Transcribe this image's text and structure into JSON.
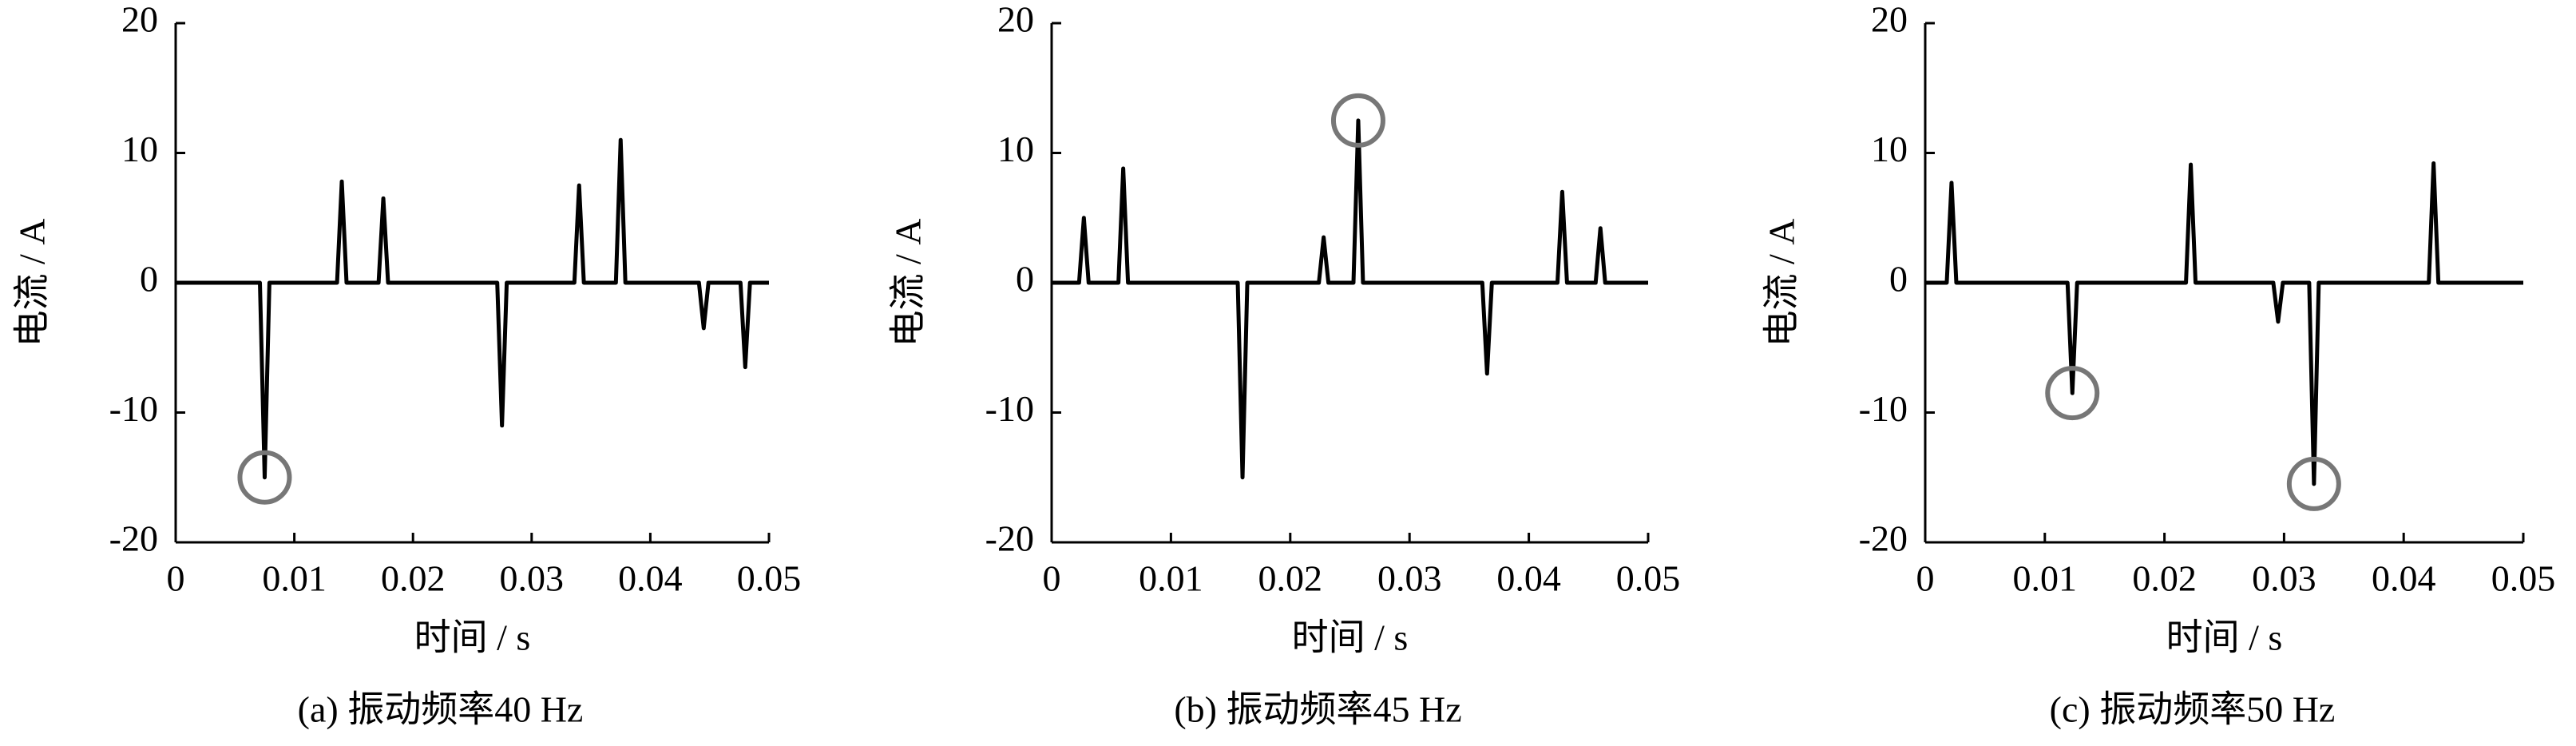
{
  "chart_data": [
    {
      "type": "line",
      "caption": "(a)  振动频率40 Hz",
      "xlabel": "时间 / s",
      "ylabel": "电流 / A",
      "xlim": [
        0,
        0.05
      ],
      "ylim": [
        -20,
        20
      ],
      "xticks": [
        0,
        0.01,
        0.02,
        0.03,
        0.04,
        0.05
      ],
      "yticks": [
        -20,
        -10,
        0,
        10,
        20
      ],
      "series": [
        {
          "color": "#000000",
          "x": [
            0,
            0.0071,
            0.0075,
            0.0079,
            0.0136,
            0.014,
            0.0144,
            0.0171,
            0.0175,
            0.0179,
            0.0271,
            0.0275,
            0.0279,
            0.0336,
            0.034,
            0.0344,
            0.0371,
            0.0375,
            0.0379,
            0.0441,
            0.0445,
            0.0449,
            0.0476,
            0.048,
            0.0484,
            0.05
          ],
          "values": [
            0,
            0,
            -15,
            0,
            0,
            7.8,
            0,
            0,
            6.5,
            0,
            0,
            -11,
            0,
            0,
            7.5,
            0,
            0,
            11,
            0,
            0,
            -3.5,
            0,
            0,
            -6.5,
            0,
            0
          ]
        }
      ],
      "markers": [
        {
          "x": 0.0075,
          "y": -15
        }
      ],
      "marker_color": "#777777"
    },
    {
      "type": "line",
      "caption": "(b)  振动频率45 Hz",
      "xlabel": "时间 / s",
      "ylabel": "电流 / A",
      "xlim": [
        0,
        0.05
      ],
      "ylim": [
        -20,
        20
      ],
      "xticks": [
        0,
        0.01,
        0.02,
        0.03,
        0.04,
        0.05
      ],
      "yticks": [
        -20,
        -10,
        0,
        10,
        20
      ],
      "series": [
        {
          "color": "#000000",
          "x": [
            0,
            0.0023,
            0.0027,
            0.0031,
            0.0056,
            0.006,
            0.0064,
            0.0156,
            0.016,
            0.0164,
            0.0224,
            0.0228,
            0.0232,
            0.0253,
            0.0257,
            0.0261,
            0.0361,
            0.0365,
            0.0369,
            0.0424,
            0.0428,
            0.0432,
            0.0456,
            0.046,
            0.0464,
            0.05
          ],
          "values": [
            0,
            0,
            5,
            0,
            0,
            8.8,
            0,
            0,
            -15,
            0,
            0,
            3.5,
            0,
            0,
            12.5,
            0,
            0,
            -7,
            0,
            0,
            7,
            0,
            0,
            4.2,
            0,
            0
          ]
        }
      ],
      "markers": [
        {
          "x": 0.0257,
          "y": 12.5
        }
      ],
      "marker_color": "#777777"
    },
    {
      "type": "line",
      "caption": "(c)  振动频率50 Hz",
      "xlabel": "时间 / s",
      "ylabel": "电流 / A",
      "xlim": [
        0,
        0.05
      ],
      "ylim": [
        -20,
        20
      ],
      "xticks": [
        0,
        0.01,
        0.02,
        0.03,
        0.04,
        0.05
      ],
      "yticks": [
        -20,
        -10,
        0,
        10,
        20
      ],
      "series": [
        {
          "color": "#000000",
          "x": [
            0,
            0.0018,
            0.0022,
            0.0026,
            0.0119,
            0.0123,
            0.0127,
            0.0218,
            0.0222,
            0.0226,
            0.0291,
            0.0295,
            0.0299,
            0.0321,
            0.0325,
            0.0329,
            0.0421,
            0.0425,
            0.0429,
            0.05
          ],
          "values": [
            0,
            0,
            7.7,
            0,
            0,
            -8.5,
            0,
            0,
            9.1,
            0,
            0,
            -3,
            0,
            0,
            -15.5,
            0,
            0,
            9.2,
            0,
            0
          ]
        }
      ],
      "markers": [
        {
          "x": 0.0123,
          "y": -8.5
        },
        {
          "x": 0.0325,
          "y": -15.5
        }
      ],
      "marker_color": "#777777"
    }
  ]
}
